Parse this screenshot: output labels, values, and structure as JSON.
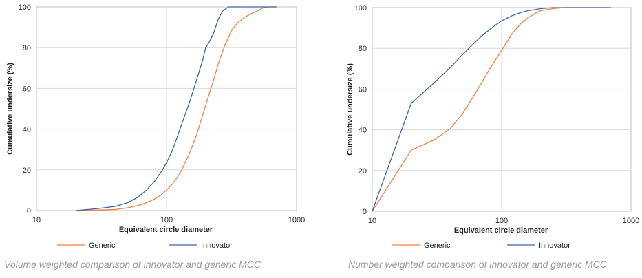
{
  "colors": {
    "generic": "#f08040",
    "innovator": "#3a66a8",
    "grid": "#d9d9d9",
    "axis": "#bfbfbf",
    "text": "#222222",
    "caption": "#9a9a9a"
  },
  "chart_data": [
    {
      "type": "line",
      "xscale": "log",
      "xlim": [
        10,
        1000
      ],
      "ylim": [
        0,
        100
      ],
      "xticks": [
        "10",
        "100",
        "1000"
      ],
      "yticks": [
        "0",
        "20",
        "40",
        "60",
        "80",
        "100"
      ],
      "xlabel": "Equivalent circle diameter",
      "ylabel": "Cumulative undersize (%)",
      "grid": true,
      "legend": "bottom",
      "caption": "Volume weighted comparison of innovator and generic MCC",
      "series": [
        {
          "name": "Generic",
          "color": "#f08040",
          "x": [
            20,
            40,
            50,
            60,
            70,
            80,
            90,
            100,
            110,
            120,
            130,
            150,
            170,
            190,
            210,
            230,
            250,
            280,
            320,
            350,
            400,
            460,
            500,
            550,
            600,
            700
          ],
          "y": [
            0,
            0.5,
            1.3,
            2.4,
            3.8,
            5.5,
            7.5,
            10,
            12.8,
            16,
            19.6,
            28,
            37,
            47,
            56,
            64,
            72,
            81,
            89,
            92,
            95,
            97,
            98,
            99.5,
            100,
            100
          ]
        },
        {
          "name": "Innovator",
          "color": "#3a66a8",
          "x": [
            20,
            30,
            40,
            50,
            60,
            70,
            80,
            90,
            100,
            110,
            120,
            130,
            150,
            170,
            190,
            200,
            210,
            230,
            250,
            270,
            300,
            320,
            700
          ],
          "y": [
            0,
            1,
            2,
            3.8,
            6.5,
            10,
            14,
            18.5,
            23.5,
            29,
            35.5,
            42,
            53,
            64,
            74,
            80,
            82,
            87,
            94,
            98,
            100,
            100,
            100
          ]
        }
      ]
    },
    {
      "type": "line",
      "xscale": "log",
      "xlim": [
        10,
        1000
      ],
      "ylim": [
        0,
        100
      ],
      "xticks": [
        "10",
        "100",
        "1000"
      ],
      "yticks": [
        "0",
        "20",
        "40",
        "60",
        "80",
        "100"
      ],
      "xlabel": "Equivalent circle diameter",
      "ylabel": "Cumulative undersize (%)",
      "grid": true,
      "legend": "bottom",
      "caption": "Number weighted comparison of innovator and generic MCC",
      "series": [
        {
          "name": "Generic",
          "color": "#f08040",
          "x": [
            10,
            20,
            30,
            40,
            50,
            60,
            70,
            80,
            90,
            100,
            120,
            140,
            160,
            180,
            200,
            250,
            300,
            400,
            500,
            700
          ],
          "y": [
            0,
            30,
            35,
            40.5,
            48,
            56,
            63,
            69.5,
            74.5,
            79,
            87,
            92,
            95,
            97,
            98.5,
            99.5,
            100,
            100,
            100,
            100
          ]
        },
        {
          "name": "Innovator",
          "color": "#3a66a8",
          "x": [
            10,
            20,
            30,
            40,
            50,
            60,
            70,
            80,
            90,
            100,
            120,
            140,
            160,
            180,
            200,
            250,
            300,
            400,
            500,
            700
          ],
          "y": [
            0,
            53,
            63,
            70.5,
            77,
            82,
            86,
            89,
            91.5,
            93.5,
            96,
            97.5,
            98.5,
            99,
            99.5,
            100,
            100,
            100,
            100,
            100
          ]
        }
      ]
    }
  ]
}
